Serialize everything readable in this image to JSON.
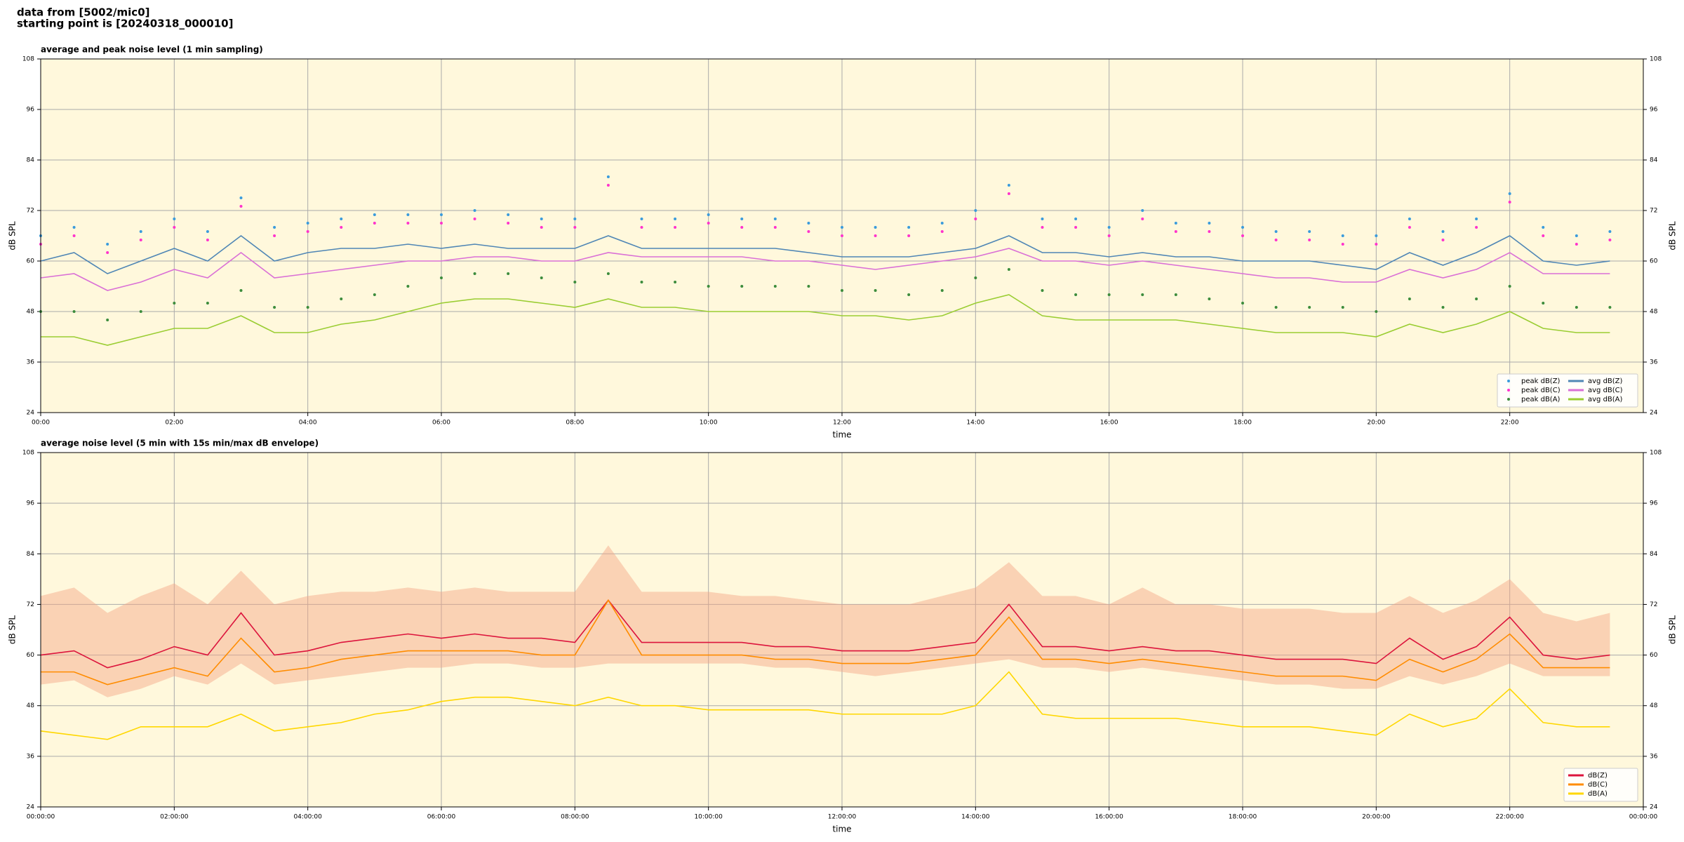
{
  "suptitle": [
    "data from [5002/mic0]",
    "starting point is [20240318_000010]"
  ],
  "chart_data": [
    {
      "type": "line",
      "title": "average and peak noise level (1 min sampling)",
      "xlabel": "time",
      "ylabel": "dB SPL",
      "background": "#fff8dc",
      "grid": true,
      "legend": "lower right",
      "legend_columns": 2,
      "x": [
        0,
        0.5,
        1,
        1.5,
        2,
        2.5,
        3,
        3.5,
        4,
        4.5,
        5,
        5.5,
        6,
        6.5,
        7,
        7.5,
        8,
        8.5,
        9,
        9.5,
        10,
        10.5,
        11,
        11.5,
        12,
        12.5,
        13,
        13.5,
        14,
        14.5,
        15,
        15.5,
        16,
        16.5,
        17,
        17.5,
        18,
        18.5,
        19,
        19.5,
        20,
        20.5,
        21,
        21.5,
        22,
        22.5,
        23,
        23.5
      ],
      "xlim": [
        0,
        24
      ],
      "xticks": [
        {
          "value": 0,
          "label": "00:00"
        },
        {
          "value": 2,
          "label": "02:00"
        },
        {
          "value": 4,
          "label": "04:00"
        },
        {
          "value": 6,
          "label": "06:00"
        },
        {
          "value": 8,
          "label": "08:00"
        },
        {
          "value": 10,
          "label": "10:00"
        },
        {
          "value": 12,
          "label": "12:00"
        },
        {
          "value": 14,
          "label": "14:00"
        },
        {
          "value": 16,
          "label": "16:00"
        },
        {
          "value": 18,
          "label": "18:00"
        },
        {
          "value": 20,
          "label": "20:00"
        },
        {
          "value": 22,
          "label": "22:00"
        }
      ],
      "ylim": [
        24,
        108
      ],
      "yticks": [
        24,
        36,
        48,
        60,
        72,
        84,
        96,
        108
      ],
      "series": [
        {
          "name": "peak dB(Z)",
          "mark": "scatter",
          "color": "#3a9bdc",
          "values": [
            66,
            68,
            64,
            67,
            70,
            67,
            75,
            68,
            69,
            70,
            71,
            71,
            71,
            72,
            71,
            70,
            70,
            80,
            70,
            70,
            71,
            70,
            70,
            69,
            68,
            68,
            68,
            69,
            72,
            78,
            70,
            70,
            68,
            72,
            69,
            69,
            68,
            67,
            67,
            66,
            66,
            70,
            67,
            70,
            76,
            68,
            66,
            67
          ]
        },
        {
          "name": "peak dB(C)",
          "mark": "scatter",
          "color": "#ff33cc",
          "values": [
            64,
            66,
            62,
            65,
            68,
            65,
            73,
            66,
            67,
            68,
            69,
            69,
            69,
            70,
            69,
            68,
            68,
            78,
            68,
            68,
            69,
            68,
            68,
            67,
            66,
            66,
            66,
            67,
            70,
            76,
            68,
            68,
            66,
            70,
            67,
            67,
            66,
            65,
            65,
            64,
            64,
            68,
            65,
            68,
            74,
            66,
            64,
            65
          ]
        },
        {
          "name": "peak dB(A)",
          "mark": "scatter",
          "color": "#3c8c3c",
          "values": [
            48,
            48,
            46,
            48,
            50,
            50,
            53,
            49,
            49,
            51,
            52,
            54,
            56,
            57,
            57,
            56,
            55,
            57,
            55,
            55,
            54,
            54,
            54,
            54,
            53,
            53,
            52,
            53,
            56,
            58,
            53,
            52,
            52,
            52,
            52,
            51,
            50,
            49,
            49,
            49,
            48,
            51,
            49,
            51,
            54,
            50,
            49,
            49
          ]
        },
        {
          "name": "avg dB(Z)",
          "mark": "line",
          "color": "#4f86b5",
          "values": [
            60,
            62,
            57,
            60,
            63,
            60,
            66,
            60,
            62,
            63,
            63,
            64,
            63,
            64,
            63,
            63,
            63,
            66,
            63,
            63,
            63,
            63,
            63,
            62,
            61,
            61,
            61,
            62,
            63,
            66,
            62,
            62,
            61,
            62,
            61,
            61,
            60,
            60,
            60,
            59,
            58,
            62,
            59,
            62,
            66,
            60,
            59,
            60
          ]
        },
        {
          "name": "avg dB(C)",
          "mark": "line",
          "color": "#da70d6",
          "values": [
            56,
            57,
            53,
            55,
            58,
            56,
            62,
            56,
            57,
            58,
            59,
            60,
            60,
            61,
            61,
            60,
            60,
            62,
            61,
            61,
            61,
            61,
            60,
            60,
            59,
            58,
            59,
            60,
            61,
            63,
            60,
            60,
            59,
            60,
            59,
            58,
            57,
            56,
            56,
            55,
            55,
            58,
            56,
            58,
            62,
            57,
            57,
            57
          ]
        },
        {
          "name": "avg dB(A)",
          "mark": "line",
          "color": "#9acd32",
          "values": [
            42,
            42,
            40,
            42,
            44,
            44,
            47,
            43,
            43,
            45,
            46,
            48,
            50,
            51,
            51,
            50,
            49,
            51,
            49,
            49,
            48,
            48,
            48,
            48,
            47,
            47,
            46,
            47,
            50,
            52,
            47,
            46,
            46,
            46,
            46,
            45,
            44,
            43,
            43,
            43,
            42,
            45,
            43,
            45,
            48,
            44,
            43,
            43
          ]
        }
      ]
    },
    {
      "type": "line",
      "title": "average noise level (5 min with 15s min/max dB envelope)",
      "xlabel": "time",
      "ylabel": "dB SPL",
      "background": "#fff8dc",
      "grid": true,
      "legend": "lower right",
      "legend_columns": 1,
      "x": [
        0,
        0.5,
        1,
        1.5,
        2,
        2.5,
        3,
        3.5,
        4,
        4.5,
        5,
        5.5,
        6,
        6.5,
        7,
        7.5,
        8,
        8.5,
        9,
        9.5,
        10,
        10.5,
        11,
        11.5,
        12,
        12.5,
        13,
        13.5,
        14,
        14.5,
        15,
        15.5,
        16,
        16.5,
        17,
        17.5,
        18,
        18.5,
        19,
        19.5,
        20,
        20.5,
        21,
        21.5,
        22,
        22.5,
        23,
        23.5
      ],
      "xlim": [
        0,
        24
      ],
      "xticks": [
        {
          "value": 0,
          "label": "00:00:00"
        },
        {
          "value": 2,
          "label": "02:00:00"
        },
        {
          "value": 4,
          "label": "04:00:00"
        },
        {
          "value": 6,
          "label": "06:00:00"
        },
        {
          "value": 8,
          "label": "08:00:00"
        },
        {
          "value": 10,
          "label": "10:00:00"
        },
        {
          "value": 12,
          "label": "12:00:00"
        },
        {
          "value": 14,
          "label": "14:00:00"
        },
        {
          "value": 16,
          "label": "16:00:00"
        },
        {
          "value": 18,
          "label": "18:00:00"
        },
        {
          "value": 20,
          "label": "20:00:00"
        },
        {
          "value": 22,
          "label": "22:00:00"
        },
        {
          "value": 24,
          "label": "00:00:00"
        }
      ],
      "ylim": [
        24,
        108
      ],
      "yticks": [
        24,
        36,
        48,
        60,
        72,
        84,
        96,
        108
      ],
      "envelope": {
        "color": "#f4a582",
        "upper": [
          74,
          76,
          70,
          74,
          77,
          72,
          80,
          72,
          74,
          75,
          75,
          76,
          75,
          76,
          75,
          75,
          75,
          86,
          75,
          75,
          75,
          74,
          74,
          73,
          72,
          72,
          72,
          74,
          76,
          82,
          74,
          74,
          72,
          76,
          72,
          72,
          71,
          71,
          71,
          70,
          70,
          74,
          70,
          73,
          78,
          70,
          68,
          70
        ],
        "lower": [
          53,
          54,
          50,
          52,
          55,
          53,
          58,
          53,
          54,
          55,
          56,
          57,
          57,
          58,
          58,
          57,
          57,
          58,
          58,
          58,
          58,
          58,
          57,
          57,
          56,
          55,
          56,
          57,
          58,
          59,
          57,
          57,
          56,
          57,
          56,
          55,
          54,
          53,
          53,
          52,
          52,
          55,
          53,
          55,
          58,
          55,
          55,
          55
        ]
      },
      "series": [
        {
          "name": "dB(Z)",
          "mark": "line",
          "color": "#dc143c",
          "values": [
            60,
            61,
            57,
            59,
            62,
            60,
            70,
            60,
            61,
            63,
            64,
            65,
            64,
            65,
            64,
            64,
            63,
            73,
            63,
            63,
            63,
            63,
            62,
            62,
            61,
            61,
            61,
            62,
            63,
            72,
            62,
            62,
            61,
            62,
            61,
            61,
            60,
            59,
            59,
            59,
            58,
            64,
            59,
            62,
            69,
            60,
            59,
            60
          ]
        },
        {
          "name": "dB(C)",
          "mark": "line",
          "color": "#ff8c00",
          "values": [
            56,
            56,
            53,
            55,
            57,
            55,
            64,
            56,
            57,
            59,
            60,
            61,
            61,
            61,
            61,
            60,
            60,
            73,
            60,
            60,
            60,
            60,
            59,
            59,
            58,
            58,
            58,
            59,
            60,
            69,
            59,
            59,
            58,
            59,
            58,
            57,
            56,
            55,
            55,
            55,
            54,
            59,
            56,
            59,
            65,
            57,
            57,
            57
          ]
        },
        {
          "name": "dB(A)",
          "mark": "line",
          "color": "#ffd700",
          "values": [
            42,
            41,
            40,
            43,
            43,
            43,
            46,
            42,
            43,
            44,
            46,
            47,
            49,
            50,
            50,
            49,
            48,
            50,
            48,
            48,
            47,
            47,
            47,
            47,
            46,
            46,
            46,
            46,
            48,
            56,
            46,
            45,
            45,
            45,
            45,
            44,
            43,
            43,
            43,
            42,
            41,
            46,
            43,
            45,
            52,
            44,
            43,
            43
          ]
        }
      ]
    }
  ]
}
